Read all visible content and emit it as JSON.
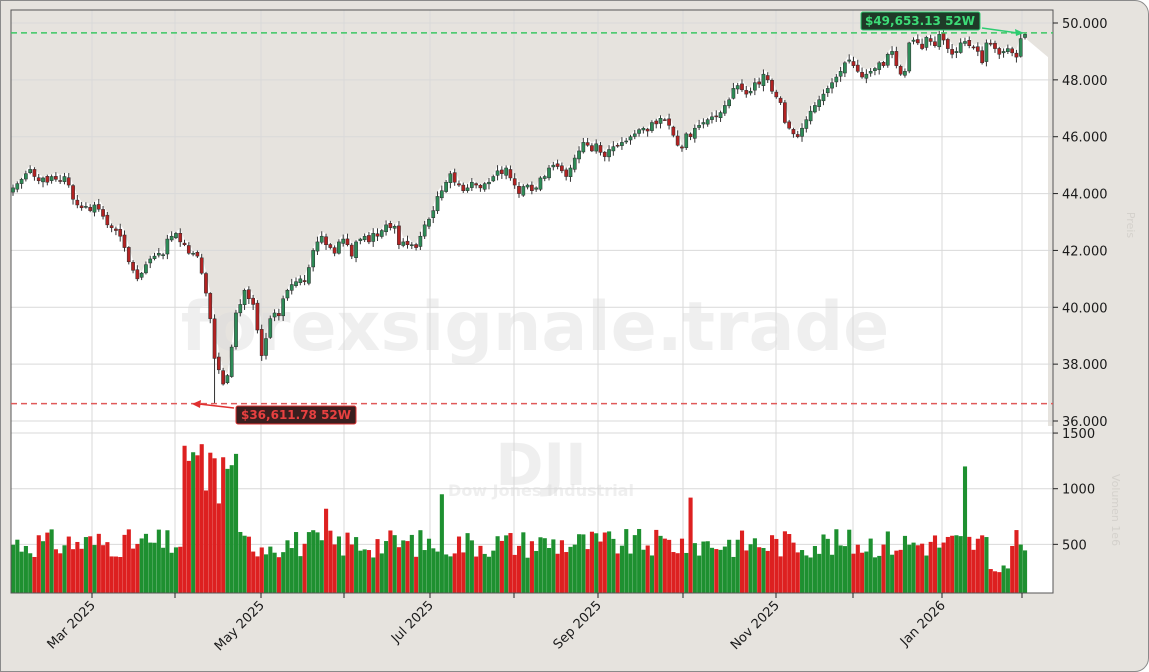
{
  "chart_data": {
    "type": "candlestick",
    "title": "DJI",
    "subtitle": "Dow Jones Industrial",
    "watermark": "forexsignale.trade",
    "x_tick_labels": [
      "Mar 2025",
      "May 2025",
      "Jul 2025",
      "Sep 2025",
      "Nov 2025",
      "Jan 2026"
    ],
    "price_axis": {
      "ticks": [
        "36.000",
        "38.000",
        "40.000",
        "42.000",
        "44.000",
        "46.000",
        "48.000",
        "50.000"
      ],
      "range": [
        35800,
        50400
      ],
      "side": "right",
      "label": "Preis"
    },
    "volume_axis": {
      "ticks": [
        "500",
        "1000",
        "1500"
      ],
      "range": [
        60,
        1560
      ],
      "side": "right",
      "label": "Volumen 1e6"
    },
    "annotations": {
      "high_52w": {
        "label": "$49,653.13 52W",
        "value": 49653.13,
        "color": "#2ecc71"
      },
      "low_52w": {
        "label": "$36,611.78 52W",
        "value": 36611.78,
        "color": "#e03030"
      }
    },
    "colors": {
      "up": "#2e8b57",
      "down": "#b22222",
      "vol_up": "#1e9030",
      "vol_down": "#dd2020",
      "area": "#e6e3de",
      "grid": "#dddddd"
    },
    "closes": [
      44200,
      44350,
      44500,
      44700,
      44850,
      44600,
      44450,
      44550,
      44400,
      44600,
      44500,
      44450,
      44600,
      44300,
      43800,
      43600,
      43500,
      43550,
      43400,
      43600,
      43450,
      43200,
      42900,
      42800,
      42700,
      42500,
      42100,
      41600,
      41300,
      41000,
      41200,
      41500,
      41700,
      41800,
      41900,
      41850,
      42400,
      42500,
      42600,
      42300,
      42200,
      41900,
      41900,
      41800,
      41200,
      40500,
      39600,
      38200,
      37800,
      37300,
      37600,
      38600,
      39800,
      40100,
      40600,
      40300,
      40100,
      39200,
      38300,
      38900,
      39600,
      39800,
      39700,
      40300,
      40600,
      40800,
      40900,
      41000,
      40900,
      41400,
      42000,
      42300,
      42500,
      42200,
      42100,
      41900,
      42300,
      42400,
      42200,
      41800,
      42300,
      42400,
      42500,
      42300,
      42600,
      42500,
      42700,
      42900,
      42800,
      42850,
      42200,
      42300,
      42200,
      42200,
      42100,
      42500,
      42900,
      43100,
      43400,
      43900,
      44100,
      44400,
      44700,
      44400,
      44300,
      44100,
      44200,
      44400,
      44300,
      44200,
      44350,
      44400,
      44600,
      44800,
      44700,
      44900,
      44550,
      44300,
      44000,
      44250,
      44300,
      44100,
      44200,
      44550,
      44600,
      44900,
      45000,
      44950,
      44800,
      44600,
      44900,
      45250,
      45500,
      45800,
      45700,
      45500,
      45750,
      45450,
      45300,
      45550,
      45650,
      45700,
      45800,
      45850,
      46000,
      46100,
      46250,
      46300,
      46200,
      46500,
      46450,
      46650,
      46600,
      46400,
      46050,
      45700,
      45600,
      46100,
      46000,
      46300,
      46400,
      46500,
      46600,
      46700,
      46700,
      46850,
      47100,
      47300,
      47700,
      47800,
      47650,
      47500,
      47600,
      47900,
      47850,
      48200,
      48000,
      47600,
      47400,
      47200,
      46500,
      46300,
      46100,
      46000,
      46300,
      46600,
      46900,
      47100,
      47300,
      47500,
      47700,
      47900,
      48100,
      48300,
      48600,
      48700,
      48500,
      48300,
      48100,
      48200,
      48300,
      48400,
      48600,
      48500,
      48900,
      49000,
      48500,
      48200,
      48300,
      49300,
      49400,
      49300,
      49100,
      49500,
      49350,
      49200,
      49600,
      49400,
      49100,
      48900,
      49000,
      49300,
      49350,
      49200,
      49150,
      49000,
      48600,
      49300,
      49250,
      49100,
      48900,
      49000,
      49100,
      48950,
      48800,
      49450,
      49600
    ]
  }
}
